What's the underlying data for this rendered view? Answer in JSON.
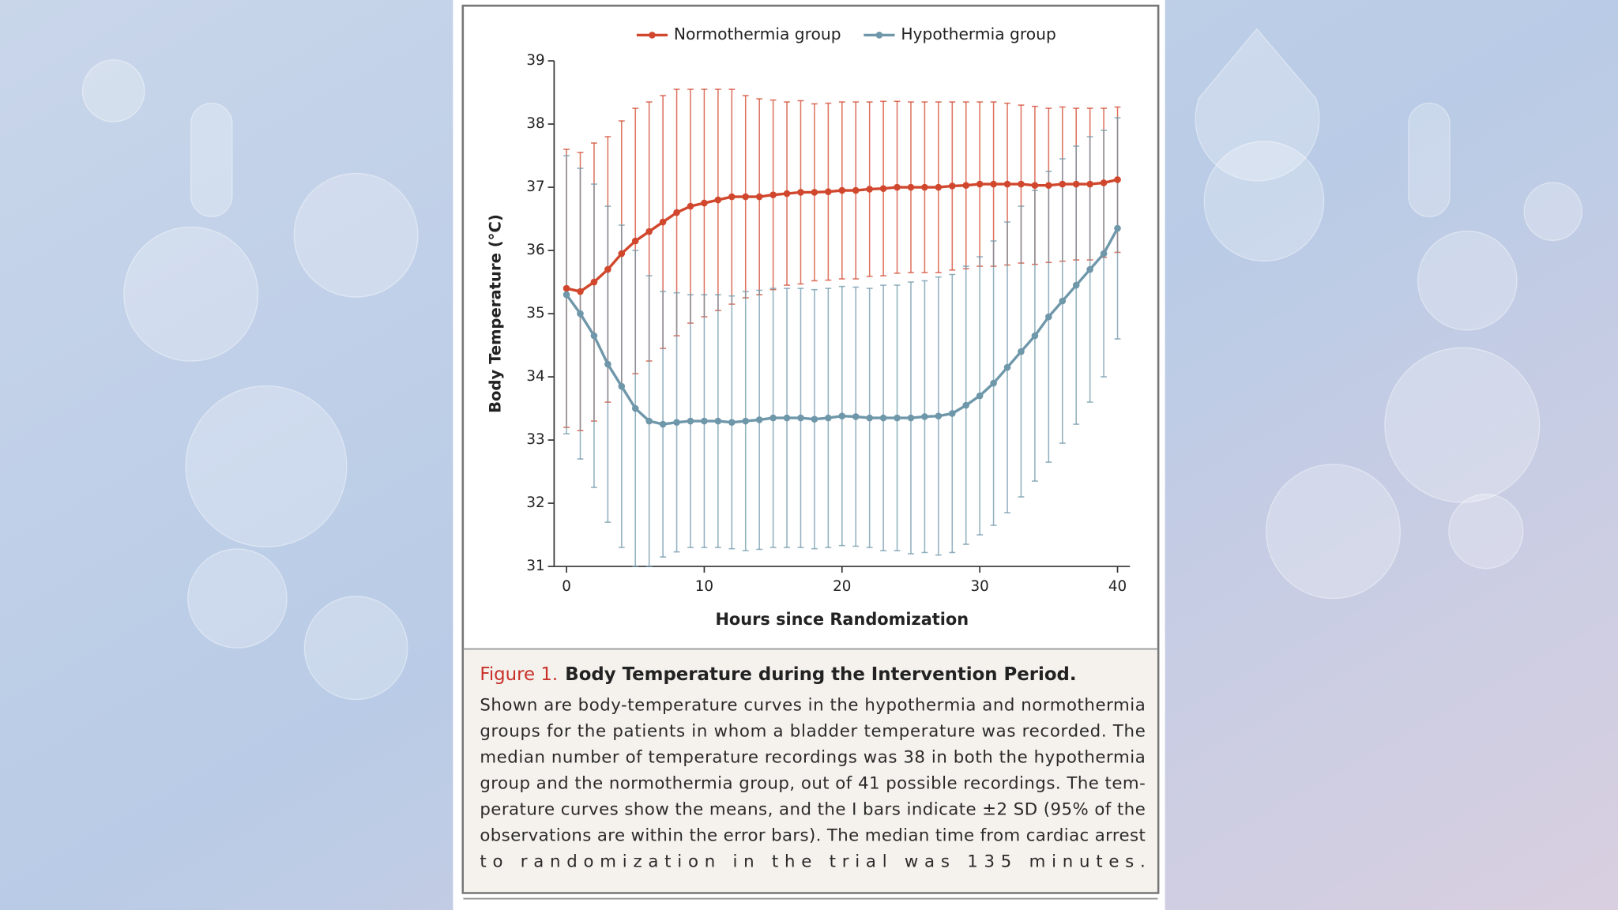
{
  "chart_data": {
    "type": "line",
    "xlabel": "Hours since Randomization",
    "ylabel": "Body Temperature (°C)",
    "legend_position": "top",
    "x": [
      0,
      1,
      2,
      3,
      4,
      5,
      6,
      7,
      8,
      9,
      10,
      11,
      12,
      13,
      14,
      15,
      16,
      17,
      18,
      19,
      20,
      21,
      22,
      23,
      24,
      25,
      26,
      27,
      28,
      29,
      30,
      31,
      32,
      33,
      34,
      35,
      36,
      37,
      38,
      39,
      40
    ],
    "xlim": [
      0,
      40
    ],
    "xticks": [
      0,
      10,
      20,
      30,
      40
    ],
    "ylim": [
      31,
      39
    ],
    "yticks": [
      31,
      32,
      33,
      34,
      35,
      36,
      37,
      38,
      39
    ],
    "series": [
      {
        "name": "Normothermia group",
        "color": "#d1472d",
        "values": [
          35.4,
          35.35,
          35.5,
          35.7,
          35.95,
          36.15,
          36.3,
          36.45,
          36.6,
          36.7,
          36.75,
          36.8,
          36.85,
          36.85,
          36.85,
          36.88,
          36.9,
          36.92,
          36.92,
          36.93,
          36.95,
          36.95,
          36.97,
          36.98,
          37.0,
          37.0,
          37.0,
          37.0,
          37.02,
          37.03,
          37.05,
          37.05,
          37.05,
          37.05,
          37.03,
          37.03,
          37.05,
          37.05,
          37.05,
          37.07,
          37.12
        ],
        "errors": [
          2.2,
          2.2,
          2.2,
          2.1,
          2.1,
          2.1,
          2.05,
          2.0,
          1.95,
          1.85,
          1.8,
          1.75,
          1.7,
          1.6,
          1.55,
          1.5,
          1.45,
          1.45,
          1.4,
          1.4,
          1.4,
          1.4,
          1.38,
          1.38,
          1.36,
          1.35,
          1.35,
          1.35,
          1.33,
          1.32,
          1.3,
          1.3,
          1.28,
          1.25,
          1.25,
          1.22,
          1.22,
          1.2,
          1.2,
          1.18,
          1.15
        ]
      },
      {
        "name": "Hypothermia group",
        "color": "#6f97aa",
        "values": [
          35.3,
          35.0,
          34.65,
          34.2,
          33.85,
          33.5,
          33.3,
          33.25,
          33.28,
          33.3,
          33.3,
          33.3,
          33.28,
          33.3,
          33.32,
          33.35,
          33.35,
          33.35,
          33.33,
          33.35,
          33.38,
          33.37,
          33.35,
          33.35,
          33.35,
          33.35,
          33.37,
          33.38,
          33.42,
          33.55,
          33.7,
          33.9,
          34.15,
          34.4,
          34.65,
          34.95,
          35.2,
          35.45,
          35.7,
          35.95,
          36.35
        ],
        "errors": [
          2.2,
          2.3,
          2.4,
          2.5,
          2.55,
          2.5,
          2.3,
          2.1,
          2.05,
          2.0,
          2.0,
          2.0,
          2.0,
          2.05,
          2.05,
          2.05,
          2.05,
          2.05,
          2.05,
          2.05,
          2.05,
          2.05,
          2.05,
          2.1,
          2.1,
          2.15,
          2.15,
          2.2,
          2.2,
          2.2,
          2.2,
          2.25,
          2.3,
          2.3,
          2.3,
          2.3,
          2.25,
          2.2,
          2.1,
          1.95,
          1.75
        ]
      }
    ]
  },
  "caption": {
    "label": "Figure 1.",
    "title": "Body Temperature during the Intervention Period.",
    "lines": [
      "Shown are body-temperature curves in the hypothermia and normothermia",
      "groups for the patients in whom a bladder temperature was recorded. The",
      "median number of temperature recordings was 38 in both the hypothermia",
      "group and the normothermia group, out of 41 possible recordings. The tem-",
      "perature curves show the means, and the I bars indicate ±2 SD (95% of the",
      "observations are within the error bars). The median time from cardiac arrest",
      "to randomization in the trial was 135 minutes."
    ]
  }
}
